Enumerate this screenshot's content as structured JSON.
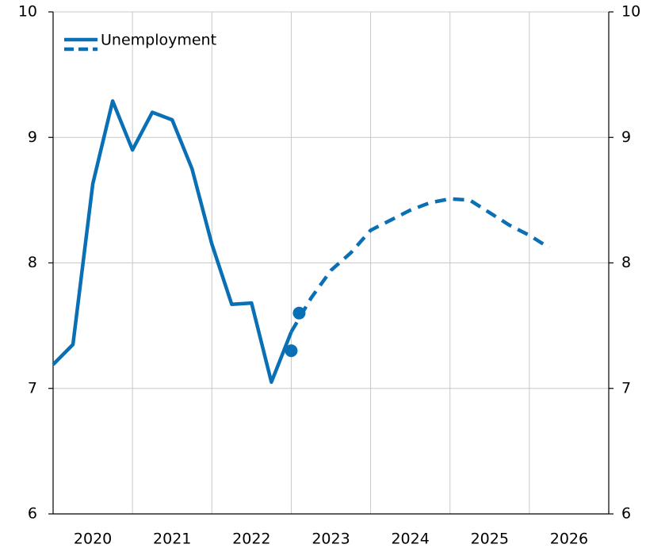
{
  "chart_data": {
    "type": "line",
    "series": [
      {
        "name": "Unemployment",
        "color": "#0a70b5",
        "dash": false,
        "x": [
          2020,
          2020.25,
          2020.5,
          2020.75,
          2021,
          2021.25,
          2021.5,
          2021.75,
          2022,
          2022.25,
          2022.5,
          2022.75,
          2023
        ],
        "values": [
          7.19,
          7.35,
          8.63,
          9.29,
          8.9,
          9.2,
          9.14,
          8.75,
          8.15,
          7.67,
          7.68,
          7.05,
          7.45
        ]
      },
      {
        "color": "#0a70b5",
        "dash": true,
        "x": [
          2023,
          2023.25,
          2023.5,
          2023.75,
          2024,
          2024.25,
          2024.5,
          2024.75,
          2025,
          2025.25,
          2025.5,
          2025.75,
          2026,
          2026.25
        ],
        "values": [
          7.45,
          7.72,
          7.94,
          8.08,
          8.26,
          8.34,
          8.42,
          8.48,
          8.51,
          8.5,
          8.4,
          8.3,
          8.22,
          8.12
        ]
      }
    ],
    "points": {
      "color": "#0a70b5",
      "x": [
        2023,
        2023.1
      ],
      "values": [
        7.3,
        7.6
      ]
    },
    "xlim": [
      2020,
      2027
    ],
    "xticks": [
      {
        "value": 2020.5,
        "label": "2020"
      },
      {
        "value": 2021.5,
        "label": "2021"
      },
      {
        "value": 2022.5,
        "label": "2022"
      },
      {
        "value": 2023.5,
        "label": "2023"
      },
      {
        "value": 2024.5,
        "label": "2024"
      },
      {
        "value": 2025.5,
        "label": "2025"
      },
      {
        "value": 2026.5,
        "label": "2026"
      }
    ],
    "ylim": [
      6,
      10
    ],
    "yticks": [
      6,
      7,
      8,
      9,
      10
    ],
    "y2lim": [
      6,
      10
    ],
    "y2ticks": [
      6,
      7,
      8,
      9,
      10
    ],
    "grid": true,
    "legend": "upper left"
  }
}
